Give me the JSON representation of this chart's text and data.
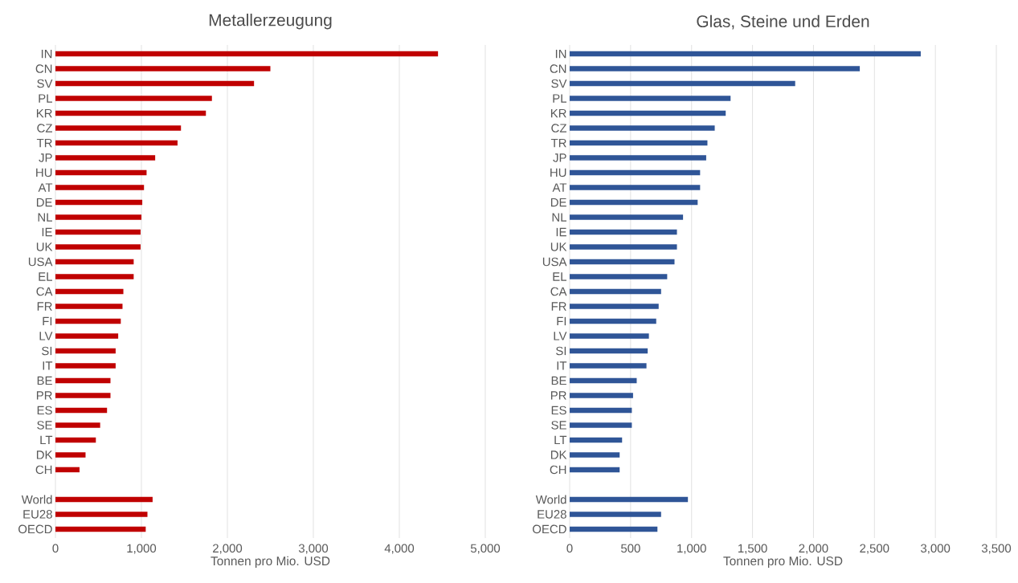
{
  "chart_data": [
    {
      "type": "bar",
      "orientation": "horizontal",
      "title": "Metallerzeugung",
      "xlabel": "Tonnen pro Mio. USD",
      "color": "#c00000",
      "grid": "x",
      "categories": [
        "IN",
        "CN",
        "SV",
        "PL",
        "KR",
        "CZ",
        "TR",
        "JP",
        "HU",
        "AT",
        "DE",
        "NL",
        "IE",
        "UK",
        "USA",
        "EL",
        "CA",
        "FR",
        "FI",
        "LV",
        "SI",
        "IT",
        "BE",
        "PR",
        "ES",
        "SE",
        "LT",
        "DK",
        "CH",
        null,
        "World",
        "EU28",
        "OECD"
      ],
      "values": [
        4450,
        2500,
        2310,
        1820,
        1750,
        1460,
        1420,
        1160,
        1060,
        1030,
        1010,
        1000,
        990,
        990,
        910,
        910,
        790,
        780,
        760,
        730,
        700,
        700,
        640,
        640,
        600,
        520,
        470,
        350,
        280,
        null,
        1130,
        1070,
        1050
      ],
      "xlim": [
        0,
        5000
      ],
      "xticks": [
        0,
        {
          "value": 1000,
          "label": "1,000"
        },
        {
          "value": 2000,
          "label": "2,000"
        },
        {
          "value": 3000,
          "label": "3,000"
        },
        {
          "value": 4000,
          "label": "4,000"
        },
        {
          "value": 5000,
          "label": "5,000"
        }
      ]
    },
    {
      "type": "bar",
      "orientation": "horizontal",
      "title": "Glas, Steine und Erden",
      "xlabel": "Tonnen pro Mio. USD",
      "color": "#2f5597",
      "grid": "x",
      "categories": [
        "IN",
        "CN",
        "SV",
        "PL",
        "KR",
        "CZ",
        "TR",
        "JP",
        "HU",
        "AT",
        "DE",
        "NL",
        "IE",
        "UK",
        "USA",
        "EL",
        "CA",
        "FR",
        "FI",
        "LV",
        "SI",
        "IT",
        "BE",
        "PR",
        "ES",
        "SE",
        "LT",
        "DK",
        "CH",
        null,
        "World",
        "EU28",
        "OECD"
      ],
      "values": [
        2880,
        2380,
        1850,
        1320,
        1280,
        1190,
        1130,
        1120,
        1070,
        1070,
        1050,
        930,
        880,
        880,
        860,
        800,
        750,
        730,
        710,
        650,
        640,
        630,
        550,
        520,
        510,
        510,
        430,
        410,
        410,
        null,
        970,
        750,
        720
      ],
      "xlim": [
        0,
        3500
      ],
      "xticks": [
        0,
        500,
        {
          "value": 1000,
          "label": "1,000"
        },
        {
          "value": 1500,
          "label": "1,500"
        },
        {
          "value": 2000,
          "label": "2,000"
        },
        {
          "value": 2500,
          "label": "2,500"
        },
        {
          "value": 3000,
          "label": "3,000"
        },
        {
          "value": 3500,
          "label": "3,500"
        }
      ]
    }
  ]
}
